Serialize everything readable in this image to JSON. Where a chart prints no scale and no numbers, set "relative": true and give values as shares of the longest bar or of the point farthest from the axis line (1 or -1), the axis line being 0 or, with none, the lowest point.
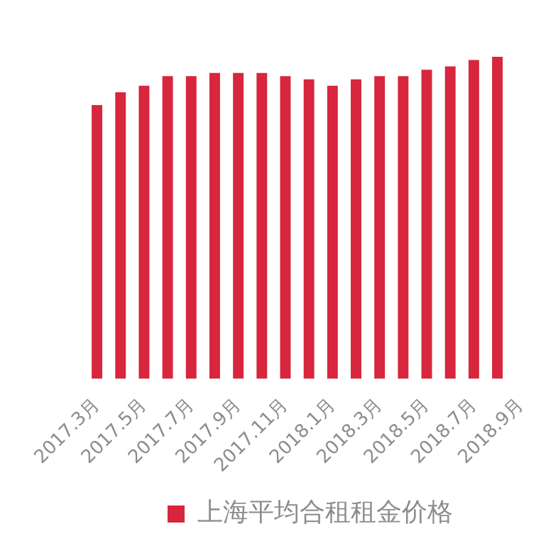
{
  "chart_data": {
    "type": "bar",
    "relative": true,
    "legend": "bottom",
    "categories": [
      "2017.3月",
      null,
      "2017.5月",
      null,
      "2017.7月",
      null,
      "2017.9月",
      null,
      "2017.11月",
      null,
      "2018.1月",
      null,
      "2018.3月",
      null,
      "2018.5月",
      null,
      "2018.7月",
      null,
      "2018.9月"
    ],
    "series": [
      {
        "name": "上海平均合租租金价格",
        "color": "#d7263d",
        "values": [
          0.85,
          0.89,
          0.91,
          0.94,
          0.94,
          0.95,
          0.95,
          0.95,
          0.94,
          0.93,
          0.91,
          0.93,
          0.94,
          0.94,
          0.96,
          0.97,
          0.99,
          1,
          null
        ]
      }
    ]
  }
}
